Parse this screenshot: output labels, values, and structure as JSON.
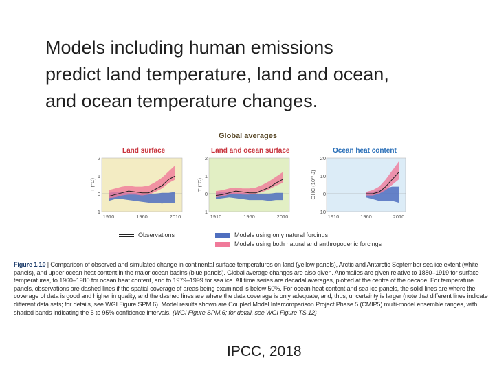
{
  "slide": {
    "title_lines": [
      "Models including human emissions",
      "predict land temperature, land and ocean,",
      "and ocean temperature changes."
    ],
    "source": "IPCC, 2018"
  },
  "figure": {
    "heading": "Global averages",
    "panels": [
      {
        "title": "Land surface",
        "ylabel": "T (°C)",
        "yticks": [
          "2",
          "1",
          "0",
          "−1"
        ],
        "xticks": [
          "1910",
          "1960",
          "2010"
        ]
      },
      {
        "title": "Land and ocean surface",
        "ylabel": "T (°C)",
        "yticks": [
          "2",
          "1",
          "0",
          "−1"
        ],
        "xticks": [
          "1910",
          "1960",
          "2010"
        ]
      },
      {
        "title": "Ocean heat content",
        "ylabel": "OHC (10²² J)",
        "yticks": [
          "20",
          "10",
          "0",
          "−10"
        ],
        "xticks": [
          "1910",
          "1960",
          "2010"
        ]
      }
    ],
    "legend": {
      "observations": "Observations",
      "natural": "Models using only natural forcings",
      "both": "Models using both natural and anthropogenic forcings"
    },
    "caption": {
      "label": "Figure 1.10",
      "text": " | Comparison of observed and simulated change in continental surface temperatures on land (yellow panels), Arctic and Antarctic September sea ice extent (white panels), and upper ocean heat content in the major ocean basins (blue panels). Global average changes are also given. Anomalies are given relative to 1880–1919 for surface temperatures, to 1960–1980 for ocean heat content, and to 1979–1999 for sea ice. All time series are decadal averages, plotted at the centre of the decade. For temperature panels, observations are dashed lines if the spatial coverage of areas being examined is below 50%. For ocean heat content and sea ice panels, the solid lines are where the coverage of data is good and higher in quality, and the dashed lines are where the data coverage is only adequate, and, thus, uncertainty is larger (note that different lines indicate different data sets; for details, see WGI Figure SPM.6). Model results shown are Coupled Model Intercomparison Project Phase 5 (CMIP5) multi-model ensemble ranges, with shaded bands indicating the 5 to 95% confidence intervals. ",
      "ref": "{WGI Figure SPM.6; for detail, see WGI Figure TS.12}"
    },
    "colors": {
      "land_bg": "#f3ecc3",
      "landocean_bg": "#e2efc4",
      "ocean_bg": "#dcecf7",
      "natural_band": "#4f6fbf",
      "both_band": "#f07a9a",
      "observations": "#222222",
      "panel_title_land": "#c8323c",
      "panel_title_ocean": "#2a6fb8"
    }
  },
  "chart_data": [
    {
      "type": "area",
      "title": "Land surface",
      "ylabel": "T (°C)",
      "xlim": [
        1910,
        2010
      ],
      "ylim": [
        -1,
        2
      ],
      "x": [
        1910,
        1920,
        1930,
        1940,
        1950,
        1960,
        1970,
        1980,
        1990,
        2000,
        2010
      ],
      "series": [
        {
          "name": "Models using both natural and anthropogenic forcings",
          "low": [
            -0.25,
            -0.2,
            -0.1,
            -0.05,
            -0.05,
            -0.1,
            -0.05,
            0.1,
            0.3,
            0.6,
            0.8
          ],
          "high": [
            0.2,
            0.3,
            0.4,
            0.45,
            0.4,
            0.4,
            0.45,
            0.65,
            0.9,
            1.25,
            1.6
          ]
        },
        {
          "name": "Models using only natural forcings",
          "low": [
            -0.4,
            -0.3,
            -0.3,
            -0.35,
            -0.4,
            -0.45,
            -0.5,
            -0.5,
            -0.55,
            -0.5,
            -0.5
          ],
          "high": [
            0.05,
            0.1,
            0.1,
            0.05,
            0.05,
            0.0,
            0.0,
            0.0,
            0.05,
            0.05,
            0.1
          ]
        },
        {
          "name": "Observations",
          "values": [
            -0.15,
            -0.05,
            0.05,
            0.15,
            0.1,
            0.05,
            0.05,
            0.25,
            0.45,
            0.8,
            1.0
          ]
        }
      ]
    },
    {
      "type": "area",
      "title": "Land and ocean surface",
      "ylabel": "T (°C)",
      "xlim": [
        1910,
        2010
      ],
      "ylim": [
        -1,
        2
      ],
      "x": [
        1910,
        1920,
        1930,
        1940,
        1950,
        1960,
        1970,
        1980,
        1990,
        2000,
        2010
      ],
      "series": [
        {
          "name": "Models using both natural and anthropogenic forcings",
          "low": [
            -0.2,
            -0.15,
            -0.05,
            0.0,
            -0.05,
            -0.05,
            0.0,
            0.1,
            0.25,
            0.45,
            0.6
          ],
          "high": [
            0.15,
            0.2,
            0.3,
            0.35,
            0.3,
            0.3,
            0.35,
            0.5,
            0.7,
            0.95,
            1.2
          ]
        },
        {
          "name": "Models using only natural forcings",
          "low": [
            -0.3,
            -0.25,
            -0.2,
            -0.25,
            -0.3,
            -0.35,
            -0.35,
            -0.35,
            -0.4,
            -0.35,
            -0.35
          ],
          "high": [
            0.05,
            0.1,
            0.1,
            0.05,
            0.05,
            0.0,
            0.0,
            0.0,
            0.0,
            0.05,
            0.05
          ]
        },
        {
          "name": "Observations",
          "values": [
            -0.1,
            -0.05,
            0.05,
            0.15,
            0.1,
            0.05,
            0.05,
            0.2,
            0.35,
            0.6,
            0.8
          ]
        }
      ]
    },
    {
      "type": "area",
      "title": "Ocean heat content",
      "ylabel": "OHC (10²² J)",
      "xlim": [
        1910,
        2010
      ],
      "ylim": [
        -10,
        20
      ],
      "x": [
        1960,
        1970,
        1980,
        1990,
        2000,
        2010
      ],
      "series": [
        {
          "name": "Models using both natural and anthropogenic forcings",
          "low": [
            -1,
            -1,
            0,
            2,
            5,
            8
          ],
          "high": [
            1,
            2,
            4,
            8,
            13,
            18
          ]
        },
        {
          "name": "Models using only natural forcings",
          "low": [
            -2,
            -3,
            -4,
            -4,
            -4,
            -5
          ],
          "high": [
            1,
            1,
            2,
            3,
            4,
            4
          ]
        },
        {
          "name": "Observations",
          "values": [
            0,
            0,
            1,
            4,
            8,
            12
          ]
        }
      ]
    }
  ]
}
